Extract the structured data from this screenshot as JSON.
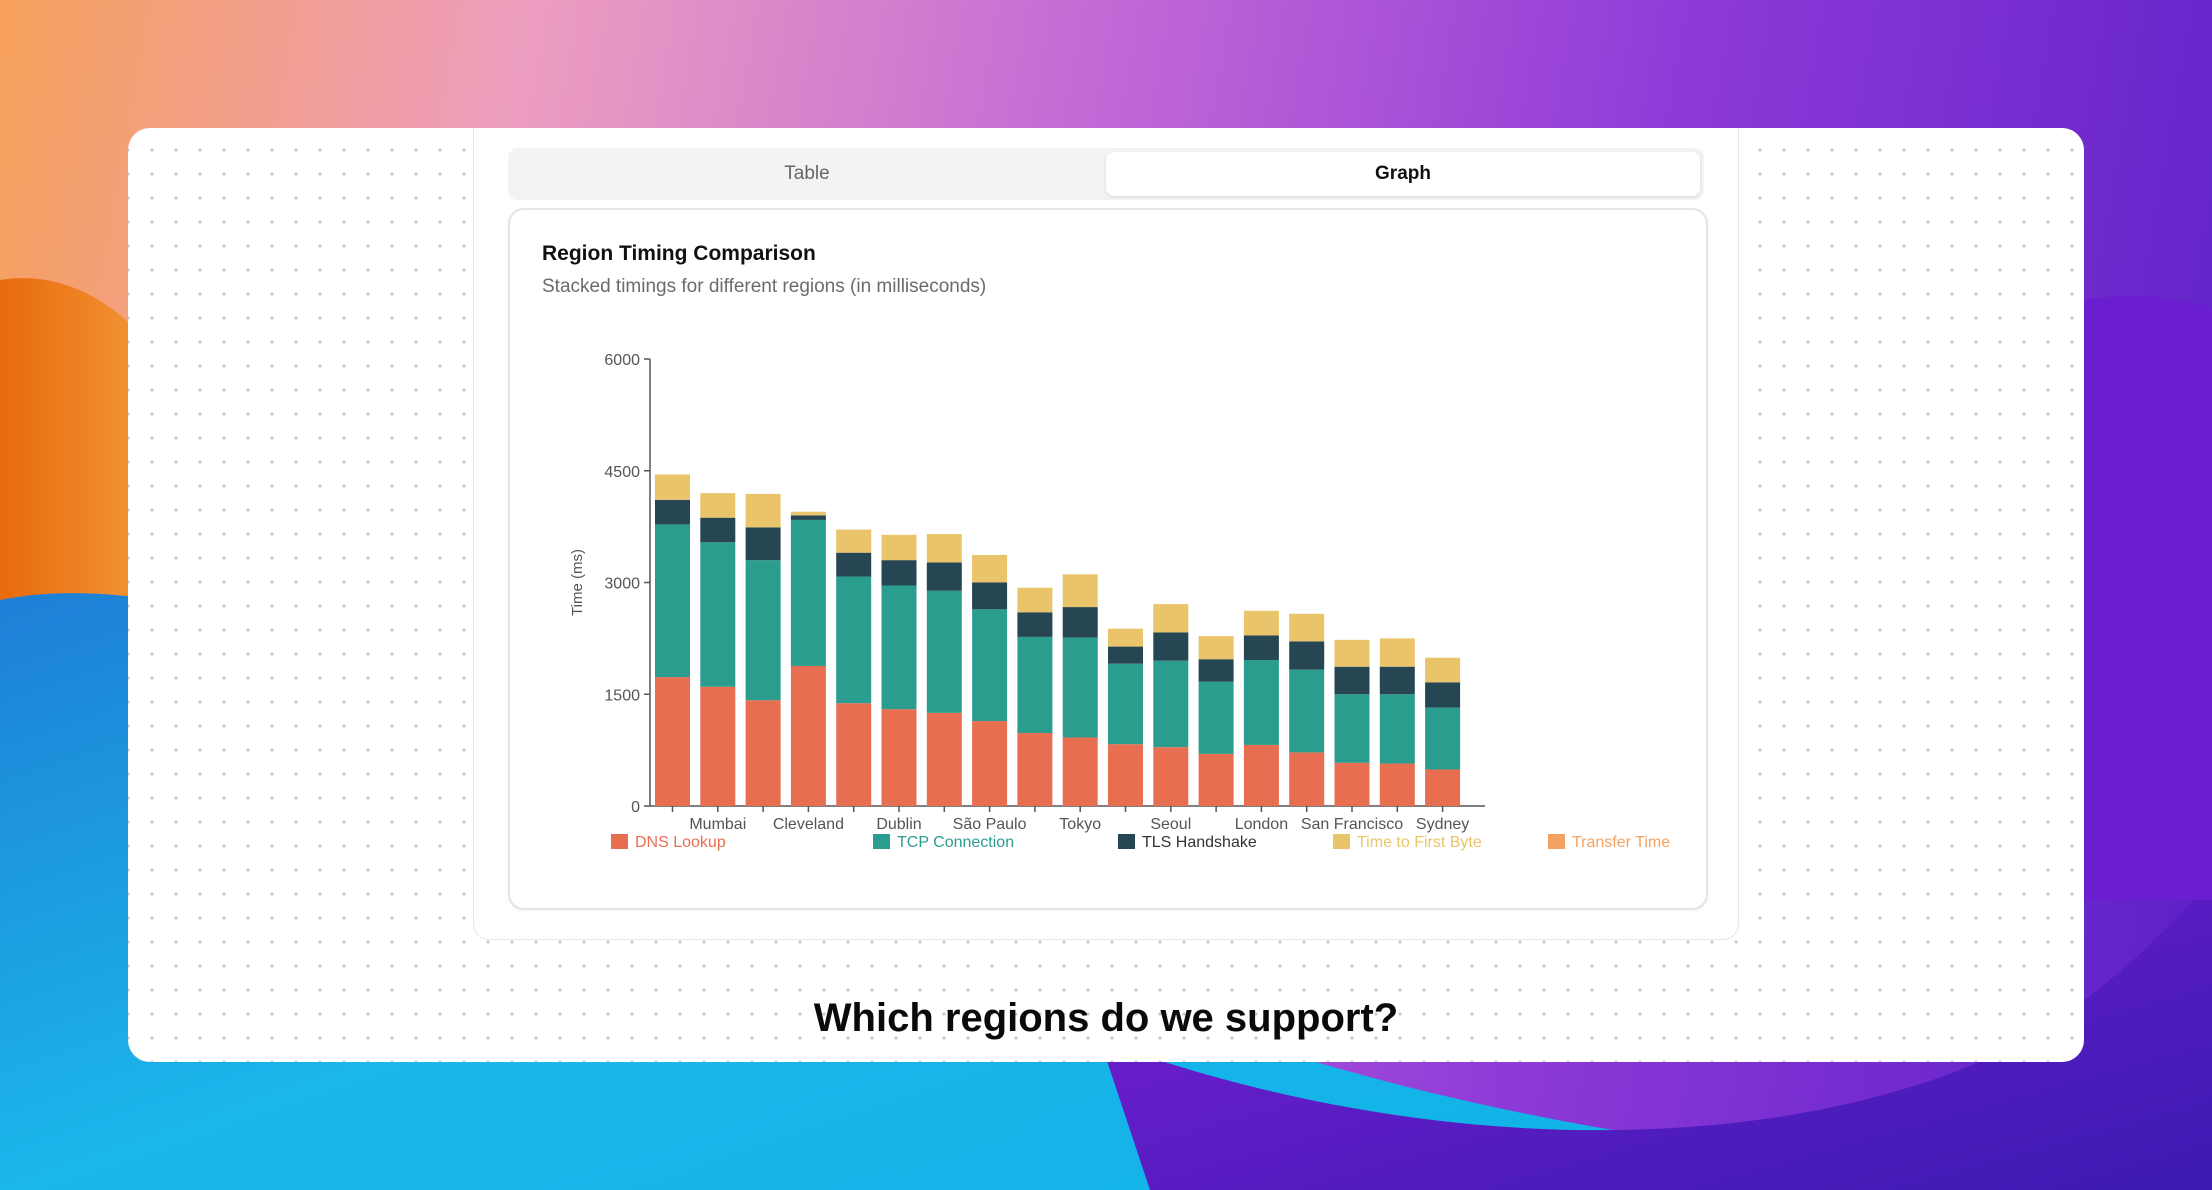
{
  "tabs": {
    "table_label": "Table",
    "graph_label": "Graph",
    "active": "Graph"
  },
  "question": "Which regions do we support?",
  "colors": {
    "dns": "#e86e52",
    "tcp": "#2a9d8f",
    "tls": "#264653",
    "ttfb": "#e9c46a",
    "transfer": "#f4a261",
    "axis": "#555555"
  },
  "chart_data": {
    "type": "bar",
    "stacked": true,
    "title": "Region Timing Comparison",
    "subtitle": "Stacked timings for different regions (in milliseconds)",
    "xlabel": "",
    "ylabel": "Time (ms)",
    "ylim": [
      0,
      6000
    ],
    "yticks": [
      "0",
      "1500",
      "3000",
      "4500",
      "6000"
    ],
    "categories": [
      "",
      "Mumbai",
      "",
      "Cleveland",
      "",
      "Dublin",
      "",
      "São Paulo",
      "",
      "Tokyo",
      "",
      "Seoul",
      "",
      "London",
      "",
      "San Francisco",
      "",
      "Sydney"
    ],
    "legend_position": "bottom",
    "series": [
      {
        "name": "DNS Lookup",
        "key": "dns",
        "values": [
          1730,
          1600,
          1420,
          1880,
          1380,
          1300,
          1250,
          1140,
          980,
          920,
          830,
          790,
          700,
          820,
          720,
          580,
          570,
          490
        ]
      },
      {
        "name": "TCP Connection",
        "key": "tcp",
        "values": [
          2050,
          1940,
          1880,
          1960,
          1700,
          1660,
          1640,
          1500,
          1290,
          1340,
          1080,
          1160,
          970,
          1140,
          1110,
          920,
          930,
          830
        ]
      },
      {
        "name": "TLS Handshake",
        "key": "tls",
        "values": [
          330,
          330,
          440,
          60,
          320,
          340,
          380,
          360,
          330,
          410,
          230,
          380,
          300,
          330,
          380,
          370,
          370,
          340
        ]
      },
      {
        "name": "Time to First Byte",
        "key": "ttfb",
        "values": [
          340,
          330,
          450,
          50,
          310,
          340,
          380,
          370,
          330,
          440,
          240,
          380,
          310,
          330,
          370,
          360,
          380,
          330
        ]
      },
      {
        "name": "Transfer Time",
        "key": "transfer",
        "values": [
          0,
          0,
          0,
          0,
          0,
          0,
          0,
          0,
          0,
          0,
          0,
          0,
          0,
          0,
          0,
          0,
          0,
          0
        ]
      }
    ]
  }
}
